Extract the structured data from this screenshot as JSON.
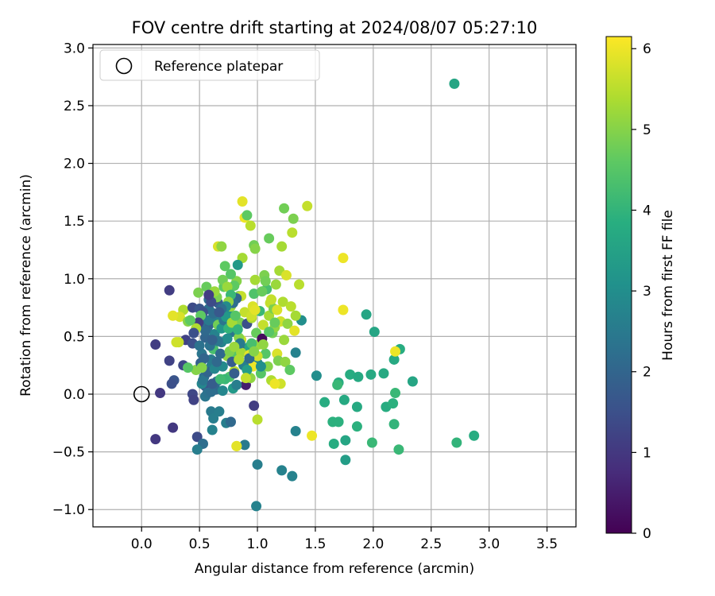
{
  "chart_data": {
    "type": "scatter",
    "title": "FOV centre drift starting at 2024/08/07 05:27:10",
    "xlabel": "Angular distance from reference (arcmin)",
    "ylabel": "Rotation from reference (arcmin)",
    "xlim": [
      -0.42,
      3.75
    ],
    "ylim": [
      -1.15,
      3.03
    ],
    "xticks": [
      0.0,
      0.5,
      1.0,
      1.5,
      2.0,
      2.5,
      3.0,
      3.5
    ],
    "xtick_labels": [
      "0.0",
      "0.5",
      "1.0",
      "1.5",
      "2.0",
      "2.5",
      "3.0",
      "3.5"
    ],
    "yticks": [
      -1.0,
      -0.5,
      0.0,
      0.5,
      1.0,
      1.5,
      2.0,
      2.5,
      3.0
    ],
    "ytick_labels": [
      "−1.0",
      "−0.5",
      "0.0",
      "0.5",
      "1.0",
      "1.5",
      "2.0",
      "2.5",
      "3.0"
    ],
    "grid": true,
    "legend": {
      "placement": "top-left",
      "entries": [
        "Reference platepar"
      ]
    },
    "reference_point": {
      "x": 0.0,
      "y": 0.0,
      "label": "Reference platepar"
    },
    "colorbar": {
      "label": "Hours from first FF file",
      "colormap": "viridis",
      "range": [
        0,
        6.15
      ],
      "ticks": [
        0,
        1,
        2,
        3,
        4,
        5,
        6
      ],
      "tick_labels": [
        "0",
        "1",
        "2",
        "3",
        "4",
        "5",
        "6"
      ]
    },
    "points": [
      [
        2.7,
        2.69,
        3.6
      ],
      [
        0.24,
        0.9,
        1.1
      ],
      [
        0.12,
        0.43,
        1.1
      ],
      [
        0.16,
        0.01,
        1.0
      ],
      [
        0.12,
        -0.39,
        1.0
      ],
      [
        0.27,
        -0.29,
        1.0
      ],
      [
        0.24,
        0.29,
        1.2
      ],
      [
        0.28,
        0.12,
        1.6
      ],
      [
        0.26,
        0.09,
        1.5
      ],
      [
        0.36,
        0.25,
        1.3
      ],
      [
        0.38,
        0.47,
        1.2
      ],
      [
        0.44,
        0.44,
        1.5
      ],
      [
        0.44,
        0.0,
        1.3
      ],
      [
        0.45,
        -0.05,
        1.2
      ],
      [
        0.48,
        -0.37,
        1.4
      ],
      [
        0.53,
        -0.43,
        2.2
      ],
      [
        0.48,
        -0.48,
        2.6
      ],
      [
        0.6,
        -0.15,
        2.5
      ],
      [
        0.62,
        -0.21,
        2.6
      ],
      [
        0.61,
        -0.31,
        2.7
      ],
      [
        0.67,
        -0.15,
        2.6
      ],
      [
        0.73,
        -0.25,
        2.6
      ],
      [
        0.77,
        -0.24,
        2.1
      ],
      [
        0.89,
        -0.44,
        2.5
      ],
      [
        0.97,
        -0.1,
        1.1
      ],
      [
        1.0,
        -0.61,
        2.6
      ],
      [
        0.99,
        -0.97,
        2.7
      ],
      [
        1.21,
        -0.66,
        2.7
      ],
      [
        1.3,
        -0.71,
        2.7
      ],
      [
        1.33,
        -0.32,
        2.7
      ],
      [
        1.33,
        0.36,
        2.7
      ],
      [
        1.38,
        0.64,
        3.0
      ],
      [
        1.51,
        0.16,
        3.0
      ],
      [
        0.36,
        0.73,
        5.4
      ],
      [
        0.32,
        0.45,
        5.6
      ],
      [
        0.33,
        0.67,
        5.8
      ],
      [
        0.4,
        0.63,
        5.0
      ],
      [
        0.44,
        0.75,
        1.4
      ],
      [
        0.47,
        0.21,
        5.0
      ],
      [
        0.5,
        0.74,
        1.6
      ],
      [
        0.53,
        0.61,
        1.8
      ],
      [
        0.49,
        0.88,
        4.9
      ],
      [
        0.51,
        0.27,
        1.9
      ],
      [
        0.54,
        0.15,
        2.2
      ],
      [
        0.52,
        0.35,
        2.4
      ],
      [
        0.55,
        0.49,
        2.0
      ],
      [
        0.57,
        0.58,
        2.3
      ],
      [
        0.58,
        0.82,
        2.2
      ],
      [
        0.56,
        0.93,
        4.7
      ],
      [
        0.55,
        0.07,
        1.6
      ],
      [
        0.52,
        0.09,
        2.8
      ],
      [
        0.6,
        0.24,
        2.5
      ],
      [
        0.62,
        0.39,
        4.3
      ],
      [
        0.63,
        0.67,
        2.6
      ],
      [
        0.65,
        0.11,
        2.4
      ],
      [
        0.67,
        0.6,
        1.9
      ],
      [
        0.66,
        0.79,
        1.8
      ],
      [
        0.64,
        0.83,
        1.2
      ],
      [
        0.69,
        0.45,
        2.7
      ],
      [
        0.7,
        0.24,
        2.9
      ],
      [
        0.71,
        0.93,
        4.6
      ],
      [
        0.74,
        0.33,
        5.1
      ],
      [
        0.72,
        1.11,
        4.6
      ],
      [
        0.75,
        0.7,
        3.1
      ],
      [
        0.77,
        0.76,
        5.2
      ],
      [
        0.78,
        0.54,
        2.4
      ],
      [
        0.79,
        0.05,
        3.3
      ],
      [
        0.8,
        0.2,
        5.5
      ],
      [
        0.81,
        0.33,
        4.5
      ],
      [
        0.82,
        0.98,
        5.0
      ],
      [
        0.84,
        0.85,
        4.8
      ],
      [
        0.85,
        0.62,
        4.9
      ],
      [
        0.86,
        0.47,
        5.7
      ],
      [
        0.87,
        1.18,
        5.3
      ],
      [
        0.88,
        0.37,
        1.6
      ],
      [
        0.89,
        0.71,
        5.6
      ],
      [
        0.9,
        0.08,
        0.5
      ],
      [
        0.91,
        0.61,
        1.5
      ],
      [
        0.92,
        0.23,
        4.8
      ],
      [
        0.93,
        0.41,
        3.6
      ],
      [
        0.94,
        0.14,
        5.1
      ],
      [
        0.95,
        0.66,
        5.4
      ],
      [
        0.96,
        0.76,
        5.8
      ],
      [
        0.97,
        0.87,
        4.4
      ],
      [
        0.98,
        0.99,
        5.3
      ],
      [
        0.99,
        0.53,
        4.7
      ],
      [
        1.0,
        0.27,
        2.7
      ],
      [
        1.01,
        0.43,
        5.2
      ],
      [
        1.02,
        0.72,
        4.1
      ],
      [
        1.03,
        0.18,
        4.5
      ],
      [
        1.04,
        0.48,
        0.2
      ],
      [
        1.05,
        0.6,
        5.6
      ],
      [
        1.06,
        1.03,
        4.9
      ],
      [
        1.07,
        0.35,
        4.5
      ],
      [
        1.08,
        0.91,
        4.3
      ],
      [
        1.09,
        0.24,
        5.0
      ],
      [
        1.1,
        0.68,
        5.3
      ],
      [
        1.11,
        0.79,
        5.6
      ],
      [
        1.12,
        0.12,
        5.4
      ],
      [
        1.13,
        0.53,
        4.8
      ],
      [
        1.14,
        0.74,
        4.9
      ],
      [
        1.15,
        0.58,
        5.1
      ],
      [
        1.16,
        0.95,
        5.2
      ],
      [
        1.17,
        0.35,
        5.8
      ],
      [
        1.18,
        0.29,
        4.9
      ],
      [
        1.19,
        1.07,
        5.3
      ],
      [
        1.2,
        0.63,
        5.7
      ],
      [
        1.21,
        1.28,
        5.3
      ],
      [
        1.22,
        0.8,
        5.4
      ],
      [
        1.23,
        0.47,
        5.2
      ],
      [
        1.24,
        0.28,
        5.1
      ],
      [
        1.25,
        1.03,
        5.8
      ],
      [
        1.26,
        0.61,
        5.1
      ],
      [
        1.28,
        0.21,
        4.6
      ],
      [
        1.29,
        0.76,
        5.5
      ],
      [
        1.3,
        1.4,
        5.5
      ],
      [
        1.31,
        1.52,
        4.9
      ],
      [
        1.32,
        0.55,
        5.9
      ],
      [
        1.33,
        0.68,
        5.3
      ],
      [
        1.36,
        0.95,
        5.5
      ],
      [
        1.23,
        1.61,
        4.8
      ],
      [
        1.43,
        1.63,
        5.6
      ],
      [
        1.2,
        0.09,
        5.7
      ],
      [
        1.15,
        0.09,
        6.0
      ],
      [
        0.87,
        1.67,
        5.9
      ],
      [
        0.89,
        1.53,
        6.0
      ],
      [
        0.91,
        1.55,
        4.6
      ],
      [
        0.94,
        1.46,
        5.5
      ],
      [
        0.97,
        1.29,
        4.8
      ],
      [
        0.98,
        1.26,
        5.0
      ],
      [
        1.1,
        1.35,
        4.7
      ],
      [
        0.77,
        1.04,
        4.5
      ],
      [
        0.83,
        1.12,
        3.3
      ],
      [
        0.66,
        1.28,
        5.8
      ],
      [
        0.69,
        1.28,
        5.1
      ],
      [
        0.7,
        0.99,
        4.8
      ],
      [
        0.86,
        0.85,
        5.6
      ],
      [
        0.8,
        0.94,
        4.6
      ],
      [
        0.74,
        0.93,
        5.2
      ],
      [
        0.27,
        0.68,
        5.9
      ],
      [
        0.3,
        0.45,
        5.7
      ],
      [
        0.4,
        0.23,
        4.5
      ],
      [
        0.58,
        0.74,
        2.2
      ],
      [
        0.59,
        0.61,
        1.9
      ],
      [
        0.6,
        0.3,
        2.5
      ],
      [
        0.63,
        0.52,
        2.7
      ],
      [
        0.68,
        0.35,
        2.1
      ],
      [
        0.74,
        0.48,
        3.0
      ],
      [
        0.76,
        0.15,
        4.4
      ],
      [
        0.78,
        0.28,
        1.8
      ],
      [
        0.82,
        0.08,
        2.6
      ],
      [
        0.84,
        0.49,
        5.0
      ],
      [
        0.86,
        0.36,
        5.3
      ],
      [
        0.93,
        0.34,
        5.9
      ],
      [
        0.96,
        0.24,
        6.0
      ],
      [
        1.0,
        0.33,
        5.7
      ],
      [
        1.03,
        0.24,
        3.0
      ],
      [
        0.95,
        0.68,
        5.7
      ],
      [
        0.98,
        0.73,
        5.9
      ],
      [
        1.04,
        0.89,
        4.7
      ],
      [
        1.07,
        0.98,
        4.8
      ],
      [
        1.12,
        0.82,
        5.6
      ],
      [
        1.17,
        0.73,
        5.8
      ],
      [
        0.64,
        0.04,
        2.1
      ],
      [
        0.7,
        0.03,
        2.8
      ],
      [
        0.72,
        0.13,
        4.1
      ],
      [
        0.8,
        0.18,
        1.8
      ],
      [
        0.55,
        -0.02,
        2.4
      ],
      [
        0.57,
        0.01,
        2.3
      ],
      [
        0.6,
        0.02,
        2.2
      ],
      [
        0.53,
        0.12,
        2.4
      ],
      [
        0.57,
        0.19,
        2.0
      ],
      [
        0.63,
        0.22,
        2.8
      ],
      [
        0.65,
        0.28,
        2.1
      ],
      [
        0.54,
        0.31,
        2.0
      ],
      [
        0.59,
        0.42,
        2.3
      ],
      [
        0.66,
        0.46,
        2.4
      ],
      [
        0.61,
        0.47,
        1.9
      ],
      [
        0.55,
        0.55,
        2.1
      ],
      [
        0.58,
        0.64,
        2.5
      ],
      [
        0.62,
        0.7,
        2.2
      ],
      [
        0.66,
        0.6,
        4.8
      ],
      [
        0.69,
        0.57,
        3.2
      ],
      [
        0.71,
        0.64,
        2.4
      ],
      [
        0.73,
        0.67,
        3.3
      ],
      [
        0.75,
        0.57,
        4.0
      ],
      [
        0.78,
        0.62,
        5.3
      ],
      [
        0.81,
        0.68,
        4.5
      ],
      [
        0.83,
        0.56,
        4.0
      ],
      [
        0.85,
        0.44,
        2.5
      ],
      [
        0.88,
        0.25,
        2.6
      ],
      [
        0.91,
        0.21,
        3.4
      ],
      [
        0.95,
        0.44,
        4.3
      ],
      [
        0.82,
        0.83,
        2.0
      ],
      [
        0.79,
        0.79,
        2.2
      ],
      [
        0.77,
        0.86,
        4.1
      ],
      [
        0.75,
        0.8,
        5.1
      ],
      [
        0.73,
        0.76,
        2.9
      ],
      [
        0.69,
        0.74,
        2.2
      ],
      [
        0.67,
        0.71,
        1.7
      ],
      [
        0.65,
        0.84,
        4.9
      ],
      [
        0.63,
        0.89,
        5.2
      ],
      [
        0.6,
        0.8,
        1.4
      ],
      [
        0.58,
        0.86,
        1.1
      ],
      [
        0.53,
        0.71,
        1.5
      ],
      [
        0.51,
        0.68,
        4.6
      ],
      [
        0.49,
        0.62,
        1.1
      ],
      [
        0.47,
        0.57,
        5.4
      ],
      [
        0.45,
        0.53,
        1.5
      ],
      [
        0.42,
        0.64,
        4.6
      ],
      [
        0.5,
        0.42,
        2.3
      ],
      [
        0.52,
        0.23,
        5.0
      ],
      [
        0.61,
        0.09,
        1.8
      ],
      [
        0.68,
        0.13,
        4.2
      ],
      [
        0.76,
        0.37,
        4.9
      ],
      [
        0.8,
        0.41,
        5.2
      ],
      [
        0.84,
        0.3,
        5.4
      ],
      [
        0.9,
        0.14,
        5.6
      ],
      [
        0.93,
        0.31,
        2.1
      ],
      [
        0.97,
        0.37,
        5.0
      ],
      [
        1.05,
        0.43,
        5.1
      ],
      [
        1.1,
        0.54,
        4.5
      ],
      [
        1.15,
        0.62,
        4.7
      ],
      [
        1.47,
        -0.36,
        6.0
      ],
      [
        1.0,
        -0.22,
        5.5
      ],
      [
        0.82,
        -0.45,
        5.8
      ],
      [
        0.82,
        -0.45,
        5.9
      ],
      [
        1.58,
        -0.07,
        3.8
      ],
      [
        1.65,
        -0.24,
        3.9
      ],
      [
        1.66,
        -0.43,
        3.8
      ],
      [
        1.7,
        -0.24,
        3.9
      ],
      [
        1.7,
        0.1,
        3.8
      ],
      [
        1.69,
        0.08,
        4.1
      ],
      [
        1.75,
        -0.05,
        3.7
      ],
      [
        1.76,
        -0.4,
        3.6
      ],
      [
        1.76,
        -0.57,
        3.4
      ],
      [
        1.8,
        0.17,
        3.8
      ],
      [
        1.86,
        -0.28,
        3.9
      ],
      [
        1.86,
        -0.11,
        3.7
      ],
      [
        1.87,
        0.15,
        3.7
      ],
      [
        1.98,
        0.17,
        3.7
      ],
      [
        1.99,
        -0.42,
        4.1
      ],
      [
        2.01,
        0.54,
        3.6
      ],
      [
        1.94,
        0.69,
        3.6
      ],
      [
        2.09,
        0.18,
        3.7
      ],
      [
        2.11,
        -0.11,
        3.8
      ],
      [
        2.17,
        -0.08,
        3.9
      ],
      [
        2.18,
        -0.26,
        4.0
      ],
      [
        2.18,
        0.3,
        3.7
      ],
      [
        2.19,
        0.01,
        4.1
      ],
      [
        2.22,
        -0.48,
        4.1
      ],
      [
        2.23,
        0.39,
        3.8
      ],
      [
        2.34,
        0.11,
        3.6
      ],
      [
        2.72,
        -0.42,
        4.0
      ],
      [
        2.87,
        -0.36,
        3.8
      ],
      [
        2.19,
        0.37,
        6.0
      ],
      [
        1.74,
        1.18,
        6.0
      ],
      [
        1.74,
        0.73,
        6.0
      ]
    ]
  }
}
